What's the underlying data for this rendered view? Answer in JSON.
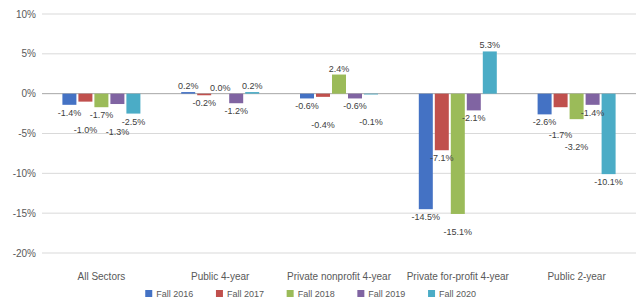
{
  "chart_data": {
    "type": "bar",
    "categories": [
      "All Sectors",
      "Public 4-year",
      "Private nonprofit 4-year",
      "Private for-profit 4-year",
      "Public 2-year"
    ],
    "series": [
      {
        "name": "Fall 2016",
        "color": "#4472c4",
        "values": [
          -1.4,
          0.2,
          -0.6,
          -14.5,
          -2.6
        ],
        "value_labels": [
          "-1.4%",
          "0.2%",
          "-0.6%",
          "-14.5%",
          "-2.6%"
        ]
      },
      {
        "name": "Fall 2017",
        "color": "#c0504d",
        "values": [
          -1.0,
          -0.2,
          -0.4,
          -7.1,
          -1.7
        ],
        "value_labels": [
          "-1.0%",
          "-0.2%",
          "-0.4%",
          "-7.1%",
          "-1.7%"
        ]
      },
      {
        "name": "Fall 2018",
        "color": "#9bbb59",
        "values": [
          -1.7,
          0.0,
          2.4,
          -15.1,
          -3.2
        ],
        "value_labels": [
          "-1.7%",
          "0.0%",
          "2.4%",
          "-15.1%",
          "-3.2%"
        ]
      },
      {
        "name": "Fall 2019",
        "color": "#8064a2",
        "values": [
          -1.3,
          -1.2,
          -0.6,
          -2.1,
          -1.4
        ],
        "value_labels": [
          "-1.3%",
          "-1.2%",
          "-0.6%",
          "-2.1%",
          "-1.4%"
        ]
      },
      {
        "name": "Fall 2020",
        "color": "#4bacc6",
        "values": [
          -2.5,
          0.2,
          -0.1,
          5.3,
          -10.1
        ],
        "value_labels": [
          "-2.5%",
          "0.2%",
          "-0.1%",
          "5.3%",
          "-10.1%"
        ]
      }
    ],
    "ylim": [
      -20,
      10
    ],
    "yticks": [
      {
        "value": -20,
        "label": "-20%"
      },
      {
        "value": -15,
        "label": "-15%"
      },
      {
        "value": -10,
        "label": "-10%"
      },
      {
        "value": -5,
        "label": "-5%"
      },
      {
        "value": 0,
        "label": "0%"
      },
      {
        "value": 5,
        "label": "5%"
      },
      {
        "value": 10,
        "label": "10%"
      }
    ],
    "grid": true,
    "legend": "bottom",
    "data_labels": true
  }
}
